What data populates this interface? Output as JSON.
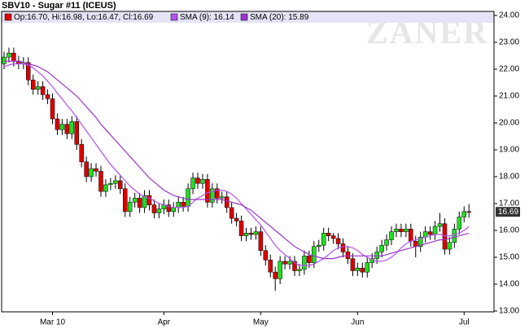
{
  "chart_data": {
    "type": "candlestick",
    "title": "SBV10 - Sugar #11 (ICEUS)",
    "watermark": "ZANER",
    "legend_ohlc": "Op:16.70, Hi:16.98, Lo:16.47, Cl:16.69",
    "legend_ohlc_color": "#dd0000",
    "last_label": "16.69",
    "up_color": "#22dd22",
    "down_color": "#dd0000",
    "ylim": [
      12.97,
      24.15
    ],
    "yticks": [
      {
        "value": 13,
        "label": "13.00"
      },
      {
        "value": 14,
        "label": "14.00"
      },
      {
        "value": 15,
        "label": "15.00"
      },
      {
        "value": 16,
        "label": "16.00"
      },
      {
        "value": 17,
        "label": "17.00"
      },
      {
        "value": 18,
        "label": "18.00"
      },
      {
        "value": 19,
        "label": "19.00"
      },
      {
        "value": 20,
        "label": "20.00"
      },
      {
        "value": 21,
        "label": "21.00"
      },
      {
        "value": 22,
        "label": "22.00"
      },
      {
        "value": 23,
        "label": "23.00"
      },
      {
        "value": 24,
        "label": "24.00"
      }
    ],
    "categories": [
      null,
      null,
      null,
      null,
      null,
      null,
      null,
      null,
      null,
      null,
      "Mar 10",
      null,
      null,
      null,
      null,
      null,
      null,
      null,
      null,
      null,
      null,
      null,
      null,
      null,
      null,
      null,
      null,
      null,
      null,
      null,
      null,
      null,
      null,
      "Apr",
      null,
      null,
      null,
      null,
      null,
      null,
      null,
      null,
      null,
      null,
      null,
      null,
      null,
      null,
      null,
      null,
      null,
      null,
      null,
      "May",
      null,
      null,
      null,
      null,
      null,
      null,
      null,
      null,
      null,
      null,
      null,
      null,
      null,
      null,
      null,
      null,
      null,
      null,
      null,
      "Jun",
      null,
      null,
      null,
      null,
      null,
      null,
      null,
      null,
      null,
      null,
      null,
      null,
      null,
      null,
      null,
      null,
      null,
      null,
      null,
      null,
      null,
      "Jul",
      null
    ],
    "candles": {
      "open": [
        22.2,
        22.45,
        22.6,
        22.3,
        22.2,
        22.25,
        21.6,
        21.25,
        21.35,
        21.05,
        20.9,
        20.15,
        19.75,
        19.95,
        19.6,
        20.05,
        19.2,
        18.55,
        18.0,
        18.3,
        18.2,
        17.45,
        17.7,
        17.75,
        17.85,
        17.55,
        16.7,
        17.05,
        17.2,
        16.85,
        17.3,
        16.95,
        16.65,
        16.8,
        16.95,
        16.7,
        16.85,
        17.05,
        16.9,
        17.55,
        17.95,
        17.75,
        17.9,
        17.05,
        17.55,
        17.2,
        17.25,
        16.85,
        16.45,
        16.35,
        15.8,
        15.9,
        15.85,
        15.95,
        15.25,
        14.9,
        14.45,
        14.2,
        14.85,
        14.75,
        14.85,
        14.5,
        14.55,
        15.05,
        14.8,
        15.4,
        15.45,
        15.9,
        15.8,
        15.7,
        15.5,
        15.2,
        14.95,
        14.5,
        14.6,
        14.45,
        14.8,
        14.95,
        15.2,
        15.45,
        15.65,
        15.95,
        16.05,
        15.95,
        16.05,
        15.6,
        15.4,
        15.75,
        15.95,
        15.85,
        16.15,
        16.25,
        15.3,
        15.55,
        16.05,
        16.5,
        16.7
      ],
      "high": [
        22.65,
        22.8,
        22.8,
        22.5,
        22.45,
        22.45,
        21.8,
        21.55,
        21.55,
        21.25,
        21.1,
        20.35,
        20.15,
        20.15,
        20.25,
        20.25,
        19.4,
        18.75,
        18.5,
        18.5,
        18.4,
        17.9,
        17.95,
        18.05,
        18.05,
        17.75,
        17.25,
        17.4,
        17.4,
        17.5,
        17.5,
        17.15,
        17.0,
        17.15,
        17.15,
        17.05,
        17.25,
        17.25,
        17.75,
        18.15,
        18.15,
        18.1,
        18.1,
        17.75,
        17.75,
        17.45,
        17.45,
        17.05,
        16.65,
        16.55,
        16.1,
        16.1,
        16.15,
        16.15,
        15.45,
        15.1,
        14.65,
        15.05,
        15.05,
        15.05,
        15.05,
        14.75,
        15.25,
        15.25,
        15.6,
        15.65,
        16.1,
        16.1,
        15.9,
        15.9,
        15.7,
        15.4,
        15.15,
        14.8,
        14.8,
        15.0,
        15.15,
        15.4,
        15.65,
        15.85,
        16.15,
        16.25,
        16.25,
        16.25,
        16.25,
        15.8,
        15.95,
        16.15,
        16.15,
        16.35,
        16.65,
        16.45,
        15.75,
        16.25,
        16.7,
        16.9,
        16.98
      ],
      "low": [
        22.0,
        22.25,
        22.1,
        22.0,
        22.0,
        21.4,
        21.05,
        21.05,
        20.85,
        20.7,
        19.95,
        19.55,
        19.55,
        19.4,
        19.4,
        19.0,
        18.35,
        17.8,
        17.8,
        18.0,
        17.25,
        17.25,
        17.5,
        17.55,
        17.35,
        16.5,
        16.5,
        16.85,
        16.65,
        16.65,
        16.75,
        16.45,
        16.45,
        16.6,
        16.5,
        16.5,
        16.65,
        16.7,
        16.7,
        17.35,
        17.55,
        17.55,
        16.85,
        16.85,
        17.0,
        17.0,
        16.65,
        16.25,
        16.15,
        15.6,
        15.6,
        15.65,
        15.65,
        15.05,
        14.7,
        14.25,
        13.75,
        14.0,
        14.55,
        14.55,
        14.3,
        14.3,
        14.35,
        14.6,
        14.6,
        15.2,
        15.25,
        15.6,
        15.5,
        15.3,
        15.0,
        14.75,
        14.3,
        14.3,
        14.25,
        14.25,
        14.6,
        14.75,
        15.0,
        15.25,
        15.45,
        15.75,
        15.75,
        15.75,
        15.4,
        15.0,
        15.2,
        15.55,
        15.65,
        15.65,
        15.95,
        15.1,
        15.1,
        15.35,
        15.85,
        16.3,
        16.47
      ],
      "close": [
        22.45,
        22.6,
        22.3,
        22.2,
        22.25,
        21.6,
        21.25,
        21.35,
        21.05,
        20.9,
        20.15,
        19.75,
        19.95,
        19.6,
        20.05,
        19.2,
        18.55,
        18.0,
        18.3,
        18.2,
        17.45,
        17.7,
        17.75,
        17.85,
        17.55,
        16.7,
        17.05,
        17.2,
        16.85,
        17.3,
        16.95,
        16.65,
        16.8,
        16.95,
        16.7,
        16.85,
        17.05,
        16.9,
        17.55,
        17.95,
        17.75,
        17.9,
        17.05,
        17.55,
        17.2,
        17.25,
        16.85,
        16.45,
        16.35,
        15.8,
        15.9,
        15.85,
        15.95,
        15.25,
        14.9,
        14.45,
        14.2,
        14.85,
        14.75,
        14.85,
        14.5,
        14.55,
        15.05,
        14.8,
        15.4,
        15.45,
        15.9,
        15.8,
        15.7,
        15.5,
        15.2,
        14.95,
        14.5,
        14.6,
        14.45,
        14.8,
        14.95,
        15.2,
        15.45,
        15.65,
        15.95,
        16.05,
        15.95,
        16.05,
        15.6,
        15.4,
        15.75,
        15.95,
        15.85,
        16.15,
        16.25,
        15.3,
        15.55,
        16.05,
        16.5,
        16.7,
        16.69
      ]
    },
    "series": [
      {
        "name": "SMA (9): 16.14",
        "color": "#b050f0",
        "values": [
          22.1,
          22.15,
          22.2,
          22.2,
          22.2,
          22.15,
          22.05,
          21.9,
          21.75,
          21.55,
          21.35,
          21.1,
          20.9,
          20.65,
          20.45,
          20.2,
          19.95,
          19.7,
          19.45,
          19.2,
          18.95,
          18.7,
          18.45,
          18.25,
          18.05,
          17.85,
          17.65,
          17.5,
          17.35,
          17.25,
          17.2,
          17.1,
          17.0,
          16.95,
          16.9,
          16.85,
          16.85,
          16.85,
          16.9,
          17.05,
          17.2,
          17.3,
          17.4,
          17.45,
          17.5,
          17.5,
          17.45,
          17.35,
          17.2,
          17.0,
          16.8,
          16.6,
          16.4,
          16.2,
          15.95,
          15.7,
          15.45,
          15.25,
          15.1,
          14.95,
          14.8,
          14.7,
          14.7,
          14.7,
          14.75,
          14.85,
          14.95,
          15.1,
          15.25,
          15.35,
          15.4,
          15.4,
          15.35,
          15.25,
          15.1,
          15.0,
          14.9,
          14.85,
          14.85,
          14.9,
          15.0,
          15.15,
          15.35,
          15.5,
          15.6,
          15.65,
          15.7,
          15.75,
          15.8,
          15.85,
          15.85,
          15.8,
          15.8,
          15.85,
          15.9,
          16.0,
          16.14
        ]
      },
      {
        "name": "SMA (20): 15.89",
        "color": "#9933cc",
        "values": [
          22.3,
          22.3,
          22.3,
          22.3,
          22.25,
          22.2,
          22.15,
          22.1,
          22.0,
          21.9,
          21.75,
          21.6,
          21.45,
          21.3,
          21.15,
          21.0,
          20.8,
          20.6,
          20.4,
          20.2,
          19.95,
          19.75,
          19.55,
          19.35,
          19.15,
          18.95,
          18.75,
          18.55,
          18.35,
          18.15,
          17.95,
          17.8,
          17.65,
          17.5,
          17.4,
          17.3,
          17.25,
          17.2,
          17.15,
          17.15,
          17.15,
          17.15,
          17.15,
          17.15,
          17.15,
          17.15,
          17.1,
          17.05,
          17.0,
          16.95,
          16.85,
          16.75,
          16.6,
          16.45,
          16.3,
          16.15,
          16.0,
          15.85,
          15.7,
          15.55,
          15.4,
          15.3,
          15.2,
          15.1,
          15.05,
          15.0,
          14.95,
          14.95,
          14.95,
          15.0,
          15.05,
          15.05,
          15.05,
          15.05,
          15.05,
          15.05,
          15.05,
          15.05,
          15.05,
          15.1,
          15.15,
          15.2,
          15.25,
          15.3,
          15.35,
          15.4,
          15.45,
          15.5,
          15.55,
          15.6,
          15.65,
          15.65,
          15.7,
          15.75,
          15.8,
          15.85,
          15.89
        ]
      }
    ]
  }
}
